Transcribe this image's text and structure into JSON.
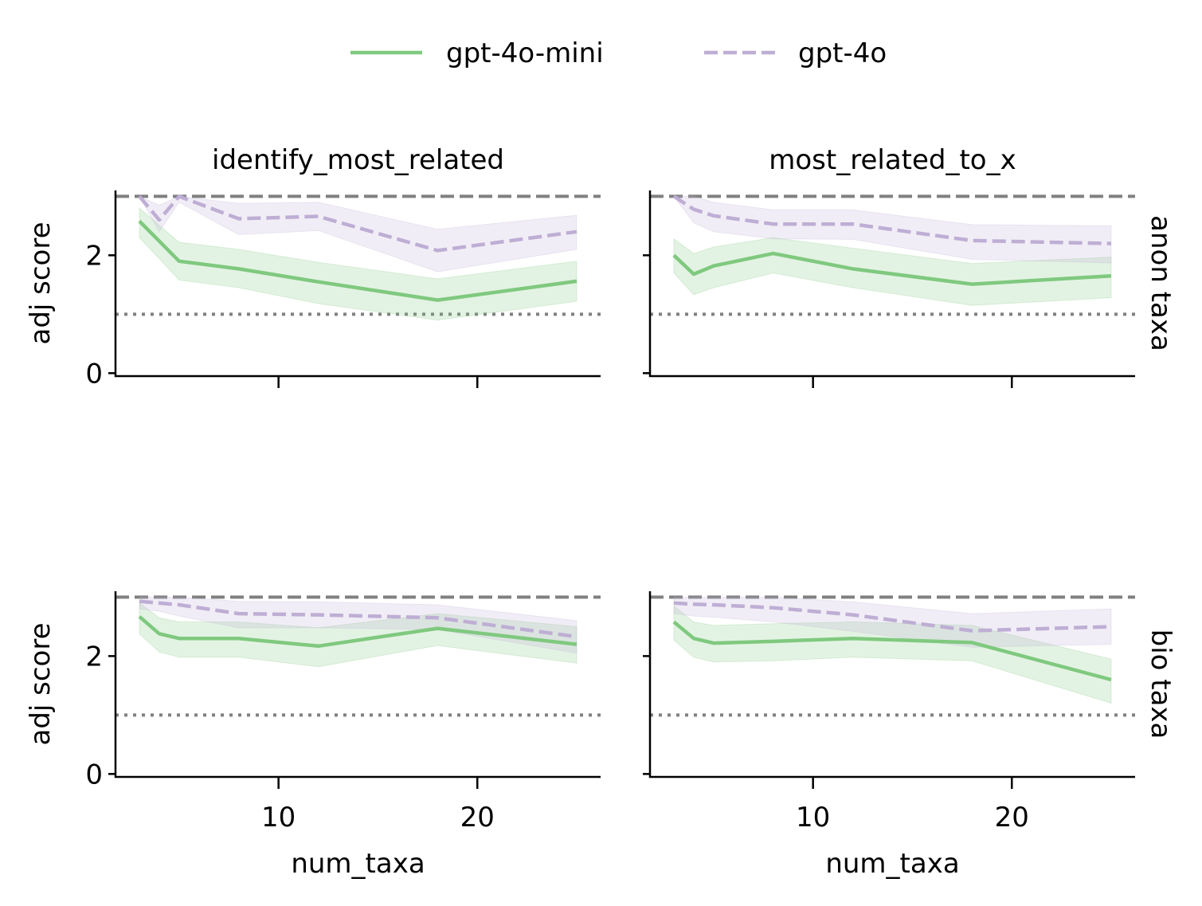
{
  "legend": [
    {
      "label": "gpt-4o-mini",
      "color": "#7fc97f",
      "dash": "solid"
    },
    {
      "label": "gpt-4o",
      "color": "#beaed4",
      "dash": "dashed"
    }
  ],
  "columns": [
    "identify_most_related",
    "most_related_to_x"
  ],
  "rows": [
    "anon taxa",
    "bio taxa"
  ],
  "xlabel": "num_taxa",
  "ylabel": "adj score",
  "x_ticks": [
    10,
    20
  ],
  "y_ticks": [
    0,
    2
  ],
  "xlim": [
    1.8,
    26.2
  ],
  "ylim": [
    -0.05,
    3.1
  ],
  "reference_lines": {
    "max_dashed": 3.0,
    "chance_dotted": 1.0,
    "color": "#808080"
  },
  "chart_data": [
    {
      "type": "line",
      "row": "anon taxa",
      "column": "identify_most_related",
      "series": [
        {
          "name": "gpt-4o-mini",
          "x": [
            3,
            5,
            8,
            12,
            18,
            25
          ],
          "y": [
            2.58,
            1.9,
            1.77,
            1.55,
            1.24,
            1.56
          ],
          "lower": [
            2.3,
            1.58,
            1.45,
            1.18,
            0.9,
            1.22
          ],
          "upper": [
            2.8,
            2.22,
            2.1,
            1.88,
            1.6,
            1.9
          ]
        },
        {
          "name": "gpt-4o",
          "x": [
            3,
            4,
            5,
            8,
            12,
            18,
            25
          ],
          "y": [
            3.0,
            2.6,
            3.0,
            2.62,
            2.66,
            2.08,
            2.4
          ],
          "lower": [
            3.0,
            2.4,
            2.9,
            2.35,
            2.42,
            1.72,
            2.1
          ],
          "upper": [
            3.0,
            2.85,
            3.0,
            2.88,
            2.9,
            2.44,
            2.68
          ]
        }
      ]
    },
    {
      "type": "line",
      "row": "anon taxa",
      "column": "most_related_to_x",
      "series": [
        {
          "name": "gpt-4o-mini",
          "x": [
            3,
            4,
            5,
            8,
            12,
            18,
            25
          ],
          "y": [
            2.0,
            1.68,
            1.82,
            2.03,
            1.77,
            1.51,
            1.65
          ],
          "lower": [
            1.7,
            1.33,
            1.45,
            1.7,
            1.45,
            1.15,
            1.28
          ],
          "upper": [
            2.28,
            2.03,
            2.14,
            2.3,
            2.12,
            1.86,
            1.97
          ]
        },
        {
          "name": "gpt-4o",
          "x": [
            3,
            4,
            5,
            8,
            12,
            18,
            25
          ],
          "y": [
            3.0,
            2.78,
            2.67,
            2.53,
            2.53,
            2.25,
            2.2
          ],
          "lower": [
            3.0,
            2.55,
            2.4,
            2.28,
            2.27,
            1.93,
            1.87
          ],
          "upper": [
            3.0,
            3.0,
            2.9,
            2.77,
            2.77,
            2.52,
            2.5
          ]
        }
      ]
    },
    {
      "type": "line",
      "row": "bio taxa",
      "column": "identify_most_related",
      "series": [
        {
          "name": "gpt-4o-mini",
          "x": [
            3,
            4,
            5,
            8,
            12,
            18,
            25
          ],
          "y": [
            2.67,
            2.38,
            2.3,
            2.3,
            2.17,
            2.47,
            2.2
          ],
          "lower": [
            2.38,
            2.07,
            1.98,
            1.98,
            1.82,
            2.18,
            1.88
          ],
          "upper": [
            2.9,
            2.65,
            2.58,
            2.58,
            2.48,
            2.72,
            2.5
          ]
        },
        {
          "name": "gpt-4o",
          "x": [
            3,
            4,
            5,
            8,
            12,
            18,
            25
          ],
          "y": [
            2.93,
            2.9,
            2.87,
            2.72,
            2.7,
            2.65,
            2.33
          ],
          "lower": [
            2.8,
            2.76,
            2.68,
            2.48,
            2.48,
            2.45,
            2.05
          ],
          "upper": [
            3.0,
            3.0,
            3.0,
            2.93,
            2.92,
            2.87,
            2.6
          ]
        }
      ]
    },
    {
      "type": "line",
      "row": "bio taxa",
      "column": "most_related_to_x",
      "series": [
        {
          "name": "gpt-4o-mini",
          "x": [
            3,
            4,
            5,
            8,
            12,
            18,
            25
          ],
          "y": [
            2.58,
            2.3,
            2.22,
            2.25,
            2.3,
            2.23,
            1.6
          ],
          "lower": [
            2.27,
            1.98,
            1.9,
            1.92,
            1.98,
            1.92,
            1.2
          ],
          "upper": [
            2.85,
            2.58,
            2.52,
            2.55,
            2.58,
            2.52,
            1.95
          ]
        },
        {
          "name": "gpt-4o",
          "x": [
            3,
            4,
            5,
            8,
            12,
            18,
            25
          ],
          "y": [
            2.9,
            2.88,
            2.87,
            2.82,
            2.7,
            2.43,
            2.5
          ],
          "lower": [
            2.72,
            2.68,
            2.66,
            2.58,
            2.42,
            2.15,
            2.2
          ],
          "upper": [
            3.0,
            3.0,
            3.0,
            3.0,
            2.92,
            2.72,
            2.8
          ]
        }
      ]
    }
  ]
}
